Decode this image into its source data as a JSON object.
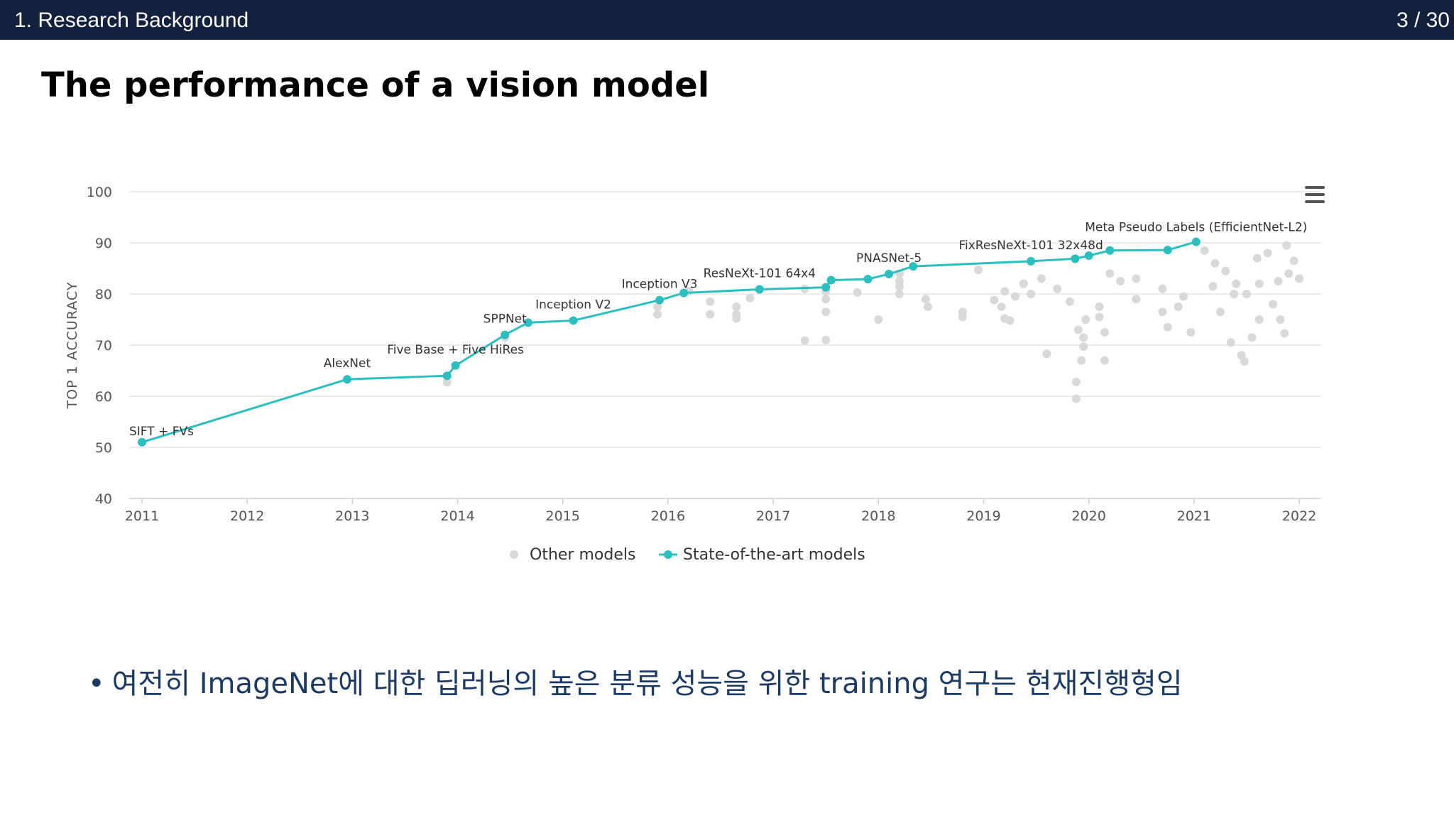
{
  "header": {
    "section": "1. Research Background",
    "page": "3 / 30"
  },
  "slide": {
    "title": "The performance of a vision model"
  },
  "bullet": {
    "text": "여전히 ImageNet에 대한 딥러닝의 높은 분류 성능을 위한 training 연구는 현재진행형임"
  },
  "icons": {
    "chart_menu": "hamburger-menu-icon"
  },
  "colors": {
    "header_bg": "#13213e",
    "sota": "#2bbfbf",
    "other": "#d9d9dc",
    "bullet_text": "#1c3a63"
  },
  "chart_data": {
    "type": "scatter",
    "title": "",
    "xlabel": "",
    "ylabel": "TOP 1 ACCURACY",
    "xlim": [
      2011,
      2022
    ],
    "ylim": [
      40,
      100
    ],
    "x_ticks": [
      "2011",
      "2012",
      "2013",
      "2014",
      "2015",
      "2016",
      "2017",
      "2018",
      "2019",
      "2020",
      "2021",
      "2022"
    ],
    "y_ticks": [
      "40",
      "50",
      "60",
      "70",
      "80",
      "90",
      "100"
    ],
    "grid": "horizontal",
    "legend": {
      "position": "bottom-center",
      "entries": [
        "Other models",
        "State-of-the-art models"
      ]
    },
    "series": [
      {
        "name": "State-of-the-art models",
        "type": "line",
        "points": [
          {
            "x": 2011.0,
            "y": 51.0,
            "label": "SIFT + FVs"
          },
          {
            "x": 2012.95,
            "y": 63.3,
            "label": "AlexNet"
          },
          {
            "x": 2013.9,
            "y": 64.0
          },
          {
            "x": 2013.98,
            "y": 66.0,
            "label": "Five Base + Five HiRes"
          },
          {
            "x": 2014.45,
            "y": 72.0,
            "label": "SPPNet"
          },
          {
            "x": 2014.67,
            "y": 74.4
          },
          {
            "x": 2015.1,
            "y": 74.8,
            "label": "Inception V2"
          },
          {
            "x": 2015.92,
            "y": 78.8,
            "label": "Inception V3"
          },
          {
            "x": 2016.15,
            "y": 80.2
          },
          {
            "x": 2016.87,
            "y": 80.9,
            "label": "ResNeXt-101 64x4"
          },
          {
            "x": 2017.5,
            "y": 81.3
          },
          {
            "x": 2017.55,
            "y": 82.7
          },
          {
            "x": 2017.9,
            "y": 82.9
          },
          {
            "x": 2018.1,
            "y": 83.9,
            "label": "PNASNet-5"
          },
          {
            "x": 2018.33,
            "y": 85.4
          },
          {
            "x": 2019.45,
            "y": 86.4,
            "label": "FixResNeXt-101 32x48d"
          },
          {
            "x": 2019.87,
            "y": 86.9
          },
          {
            "x": 2020.0,
            "y": 87.5
          },
          {
            "x": 2020.2,
            "y": 88.5
          },
          {
            "x": 2020.75,
            "y": 88.6
          },
          {
            "x": 2021.02,
            "y": 90.2,
            "label": "Meta Pseudo Labels (EfficientNet-L2)"
          }
        ]
      },
      {
        "name": "Other models",
        "type": "scatter",
        "points": [
          [
            2013.9,
            62.7
          ],
          [
            2014.45,
            71.5
          ],
          [
            2015.9,
            76.0
          ],
          [
            2015.9,
            77.5
          ],
          [
            2016.2,
            80.5
          ],
          [
            2016.4,
            78.5
          ],
          [
            2016.4,
            76.0
          ],
          [
            2016.65,
            77.5
          ],
          [
            2016.65,
            76.0
          ],
          [
            2016.65,
            75.2
          ],
          [
            2016.78,
            79.2
          ],
          [
            2017.3,
            81.0
          ],
          [
            2017.3,
            70.9
          ],
          [
            2017.5,
            71.0
          ],
          [
            2017.5,
            79.0
          ],
          [
            2017.5,
            76.5
          ],
          [
            2017.5,
            80.5
          ],
          [
            2017.8,
            80.3
          ],
          [
            2018.0,
            75.0
          ],
          [
            2018.2,
            84.0
          ],
          [
            2018.2,
            82.5
          ],
          [
            2018.2,
            81.5
          ],
          [
            2018.2,
            80.0
          ],
          [
            2018.45,
            79.0
          ],
          [
            2018.47,
            77.5
          ],
          [
            2018.8,
            76.5
          ],
          [
            2018.8,
            75.5
          ],
          [
            2018.95,
            84.7
          ],
          [
            2019.1,
            78.8
          ],
          [
            2019.17,
            77.5
          ],
          [
            2019.2,
            75.2
          ],
          [
            2019.25,
            74.8
          ],
          [
            2019.6,
            68.3
          ],
          [
            2019.38,
            82.0
          ],
          [
            2019.55,
            83.0
          ],
          [
            2019.45,
            80.0
          ],
          [
            2019.3,
            79.5
          ],
          [
            2019.7,
            81.0
          ],
          [
            2019.82,
            78.5
          ],
          [
            2019.2,
            80.5
          ],
          [
            2019.9,
            73.0
          ],
          [
            2019.88,
            62.8
          ],
          [
            2019.88,
            59.5
          ],
          [
            2019.97,
            75.0
          ],
          [
            2019.95,
            71.5
          ],
          [
            2019.95,
            69.7
          ],
          [
            2019.93,
            67.0
          ],
          [
            2020.1,
            77.5
          ],
          [
            2020.1,
            75.5
          ],
          [
            2020.15,
            72.5
          ],
          [
            2020.15,
            67.0
          ],
          [
            2020.2,
            84.0
          ],
          [
            2020.3,
            82.5
          ],
          [
            2020.45,
            83.0
          ],
          [
            2020.45,
            79.0
          ],
          [
            2020.7,
            81.0
          ],
          [
            2020.7,
            76.5
          ],
          [
            2020.75,
            73.5
          ],
          [
            2020.85,
            77.5
          ],
          [
            2020.9,
            79.5
          ],
          [
            2020.97,
            72.5
          ],
          [
            2021.1,
            88.5
          ],
          [
            2021.2,
            86.0
          ],
          [
            2021.3,
            84.5
          ],
          [
            2021.4,
            82.0
          ],
          [
            2021.5,
            80.0
          ],
          [
            2021.6,
            87.0
          ],
          [
            2021.25,
            76.5
          ],
          [
            2021.35,
            70.5
          ],
          [
            2021.45,
            68.0
          ],
          [
            2021.48,
            66.8
          ],
          [
            2021.55,
            71.5
          ],
          [
            2021.62,
            75.0
          ],
          [
            2021.75,
            78.0
          ],
          [
            2021.8,
            82.5
          ],
          [
            2021.88,
            89.5
          ],
          [
            2021.9,
            84.0
          ],
          [
            2021.95,
            86.5
          ],
          [
            2021.82,
            75.0
          ],
          [
            2021.86,
            72.3
          ],
          [
            2021.7,
            88.0
          ],
          [
            2022.0,
            83.0
          ],
          [
            2021.62,
            82.0
          ],
          [
            2021.38,
            80.0
          ],
          [
            2021.18,
            81.5
          ]
        ]
      }
    ],
    "point_labels": [
      "SIFT + FVs",
      "AlexNet",
      "Five Base + Five HiRes",
      "SPPNet",
      "Inception V2",
      "Inception V3",
      "ResNeXt-101 64x4",
      "PNASNet-5",
      "FixResNeXt-101 32x48d",
      "Meta Pseudo Labels (EfficientNet-L2)"
    ]
  }
}
